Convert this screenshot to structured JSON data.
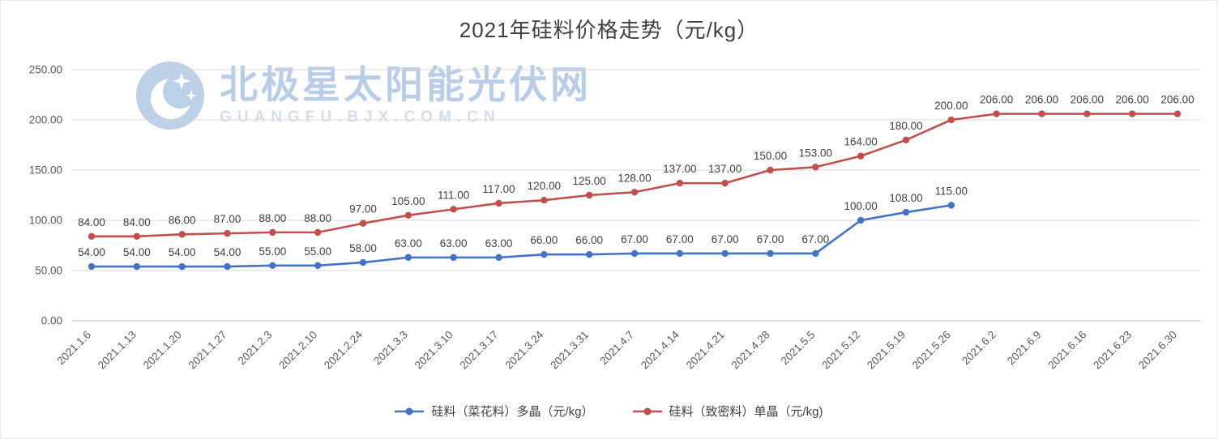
{
  "title": "2021年硅料价格走势（元/kg）",
  "watermark": {
    "line1": "北极星太阳能光伏网",
    "line2": "GUANGFU.BJX.COM.CN",
    "icon": "moon-stars-icon",
    "color_primary": "#b9cde7",
    "color_secondary": "#d3deee"
  },
  "chart_data": {
    "type": "line",
    "title": "2021年硅料价格走势（元/kg）",
    "xlabel": "",
    "ylabel": "",
    "ylim": [
      0,
      250
    ],
    "ytick_step": 50,
    "ytick_labels": [
      "0.00",
      "50.00",
      "100.00",
      "150.00",
      "200.00",
      "250.00"
    ],
    "grid": true,
    "legend_position": "bottom",
    "label_format": "two-decimals",
    "categories": [
      "2021.1.6",
      "2021.1.13",
      "2021.1.20",
      "2021.1.27",
      "2021.2.3",
      "2021.2.10",
      "2021.2.24",
      "2021.3.3",
      "2021.3.10",
      "2021.3.17",
      "2021.3.24",
      "2021.3.31",
      "2021.4.7",
      "2021.4.14",
      "2021.4.21",
      "2021.4.28",
      "2021.5.5",
      "2021.5.12",
      "2021.5.19",
      "2021.5.26",
      "2021.6.2",
      "2021.6.9",
      "2021.6.16",
      "2021.6.23",
      "2021.6.30"
    ],
    "series": [
      {
        "name": "硅料（菜花料）多晶（元/kg）",
        "color": "#4472c4",
        "values": [
          54,
          54,
          54,
          54,
          55,
          55,
          58,
          63,
          63,
          63,
          66,
          66,
          67,
          67,
          67,
          67,
          67,
          100,
          108,
          115
        ]
      },
      {
        "name": "硅料（致密料）单晶（元/kg)",
        "color": "#c0504d",
        "values": [
          84,
          84,
          86,
          87,
          88,
          88,
          97,
          105,
          111,
          117,
          120,
          125,
          128,
          137,
          137,
          150,
          153,
          164,
          180,
          200,
          206,
          206,
          206,
          206,
          206
        ]
      }
    ]
  }
}
